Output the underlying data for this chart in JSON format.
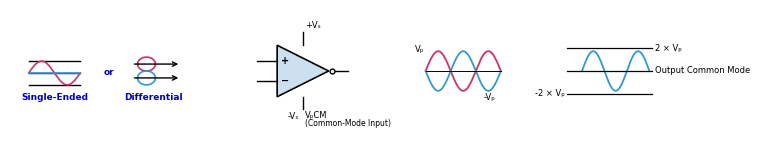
{
  "bg_color": "#ffffff",
  "red_color": "#cc3366",
  "blue_color": "#3399cc",
  "text_color": "#0000cc",
  "black_color": "#000000",
  "label_single": "Single-Ended",
  "label_diff": "Differential",
  "label_or": "or",
  "label_vs_pos": "+Vₛ",
  "label_vs_neg": "-Vₛ",
  "label_vocm": "VₚCM",
  "label_cm_input": "(Common-Mode Input)",
  "label_vp": "Vₚ",
  "label_neg_vp": "-Vₚ",
  "label_2vp": "2 × Vₚ",
  "label_neg_2vp": "-2 × Vₚ",
  "label_ocm": "Output Common Mode",
  "figsize": [
    7.73,
    1.41
  ],
  "dpi": 100
}
